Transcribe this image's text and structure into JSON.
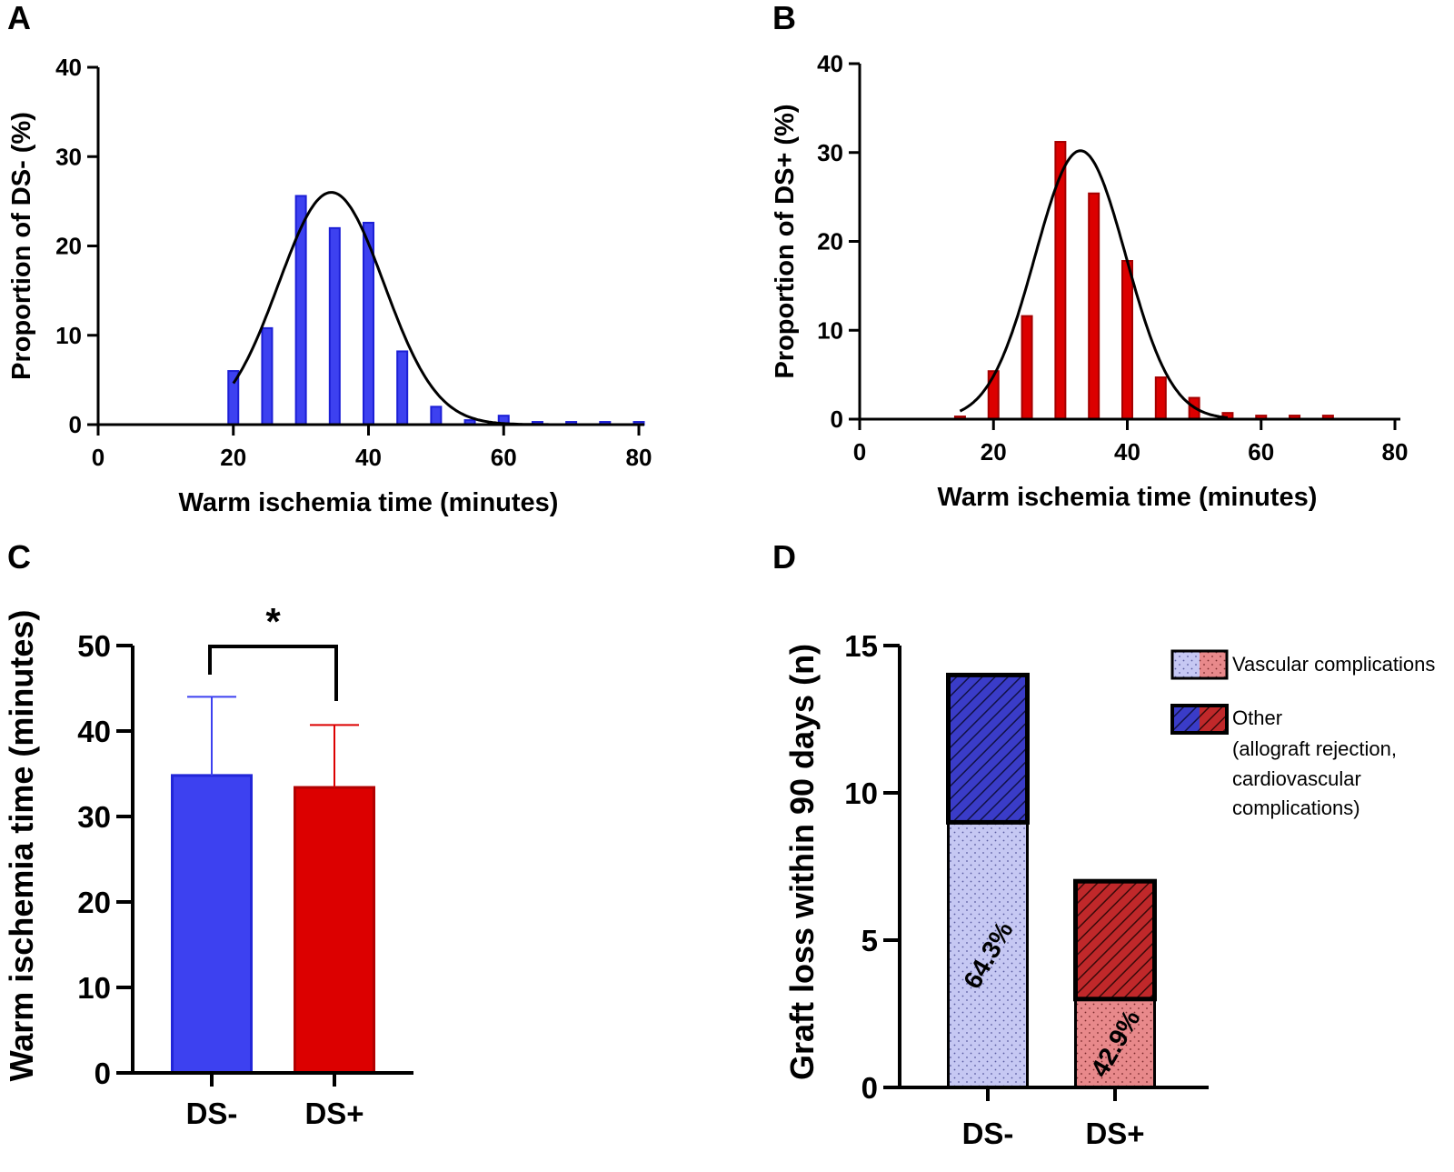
{
  "panels": {
    "A": {
      "label": "A"
    },
    "B": {
      "label": "B"
    },
    "C": {
      "label": "C"
    },
    "D": {
      "label": "D"
    }
  },
  "colors": {
    "ds_minus": "#3d41f0",
    "ds_minus_light": "#c6c8f3",
    "ds_minus_dark": "#3a3cc8",
    "ds_plus": "#dc0000",
    "ds_plus_light": "#e8898b",
    "ds_plus_dark": "#c0282a",
    "axis": "#000000"
  },
  "chart_data": [
    {
      "id": "A",
      "type": "bar",
      "subtype": "histogram-with-normal-fit",
      "xlabel": "Warm ischemia time (minutes)",
      "ylabel": "Proportion of DS- (%)",
      "xlim": [
        0,
        80
      ],
      "ylim": [
        0,
        40
      ],
      "xticks": [
        "0",
        "20",
        "40",
        "60",
        "80"
      ],
      "yticks": [
        "0",
        "10",
        "20",
        "30",
        "40"
      ],
      "x": [
        20,
        25,
        30,
        35,
        40,
        45,
        50,
        55,
        60,
        65,
        70,
        75,
        80
      ],
      "values": [
        6.0,
        10.8,
        25.6,
        22.0,
        22.6,
        8.2,
        2.0,
        0.5,
        1.0,
        0.3,
        0.3,
        0.3,
        0.3
      ],
      "fit": {
        "type": "gaussian",
        "mean": 34.5,
        "sd": 7.8,
        "peak": 26,
        "range": [
          20,
          80
        ]
      }
    },
    {
      "id": "B",
      "type": "bar",
      "subtype": "histogram-with-normal-fit",
      "xlabel": "Warm ischemia time (minutes)",
      "ylabel": "Proportion of DS+ (%)",
      "xlim": [
        0,
        80
      ],
      "ylim": [
        0,
        40
      ],
      "xticks": [
        "0",
        "20",
        "40",
        "60",
        "80"
      ],
      "yticks": [
        "0",
        "10",
        "20",
        "30",
        "40"
      ],
      "x": [
        15,
        20,
        25,
        30,
        35,
        40,
        45,
        50,
        55,
        60,
        65,
        70
      ],
      "values": [
        0.3,
        5.4,
        11.6,
        31.2,
        25.4,
        17.8,
        4.7,
        2.4,
        0.7,
        0.4,
        0.4,
        0.4
      ],
      "fit": {
        "type": "gaussian",
        "mean": 33,
        "sd": 6.8,
        "peak": 30.2,
        "range": [
          15,
          55
        ]
      }
    },
    {
      "id": "C",
      "type": "bar",
      "ylabel": "Warm ischemia time (minutes)",
      "ylim": [
        0,
        50
      ],
      "yticks": [
        "0",
        "10",
        "20",
        "30",
        "40",
        "50"
      ],
      "categories": [
        "DS-",
        "DS+"
      ],
      "values": [
        34.8,
        33.4
      ],
      "errors": [
        9.2,
        7.3
      ],
      "significance": {
        "label": "*",
        "between": [
          "DS-",
          "DS+"
        ]
      }
    },
    {
      "id": "D",
      "type": "bar",
      "subtype": "stacked",
      "ylabel": "Graft loss within 90 days (n)",
      "ylim": [
        0,
        15
      ],
      "yticks": [
        "0",
        "5",
        "10",
        "15"
      ],
      "categories": [
        "DS-",
        "DS+"
      ],
      "series": [
        {
          "name": "Vascular complications",
          "values": [
            9,
            3
          ]
        },
        {
          "name": "Other (allograft rejection, cardiovascular complications)",
          "values": [
            5,
            4
          ]
        }
      ],
      "annotations": [
        "64.3%",
        "42.9%"
      ],
      "legend": {
        "placement": "top-right",
        "items": [
          "Vascular complications",
          "Other",
          "(allograft rejection,",
          "cardiovascular",
          "complications)"
        ]
      }
    }
  ]
}
